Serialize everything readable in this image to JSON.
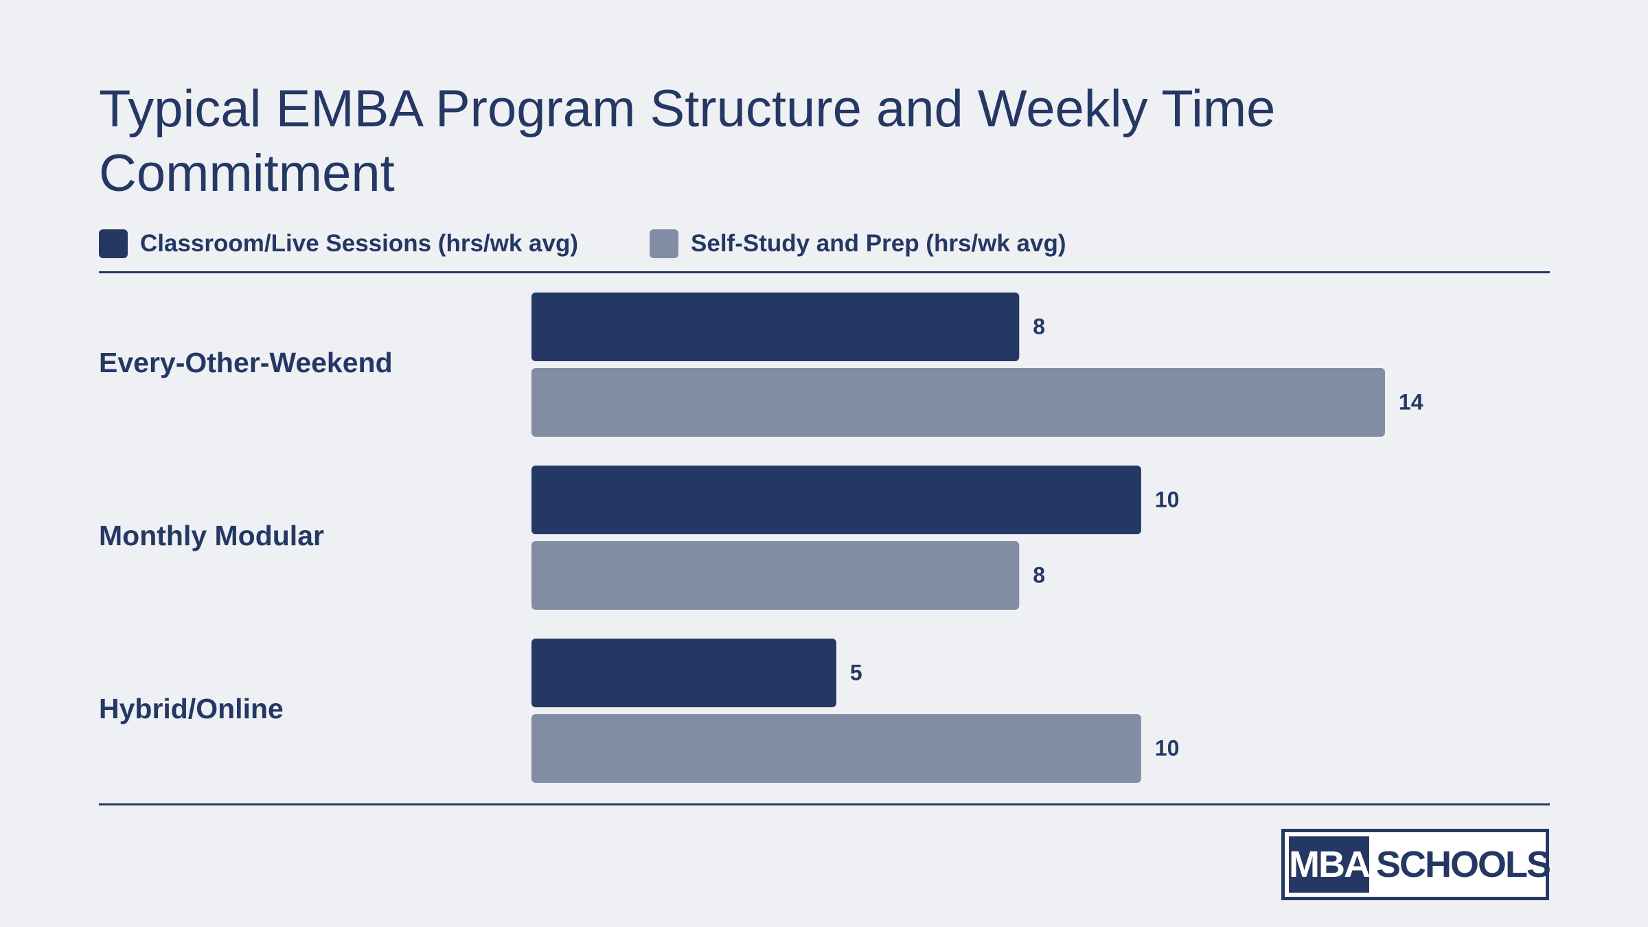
{
  "chart_data": {
    "type": "bar",
    "orientation": "horizontal",
    "title": "Typical EMBA Program Structure and Weekly Time Commitment",
    "categories": [
      "Every-Other-Weekend",
      "Monthly Modular",
      "Hybrid/Online"
    ],
    "series": [
      {
        "name": "Classroom/Live Sessions (hrs/wk avg)",
        "color": "#243863",
        "values": [
          8,
          10,
          5
        ]
      },
      {
        "name": "Self-Study and Prep (hrs/wk avg)",
        "color": "#828ca3",
        "values": [
          14,
          8,
          10
        ]
      }
    ],
    "xlim": [
      0,
      14
    ],
    "grid": false,
    "legend_position": "top-left",
    "data_labels": true
  },
  "logo": {
    "left_text": "MBA",
    "right_text": "SCHOOLS"
  }
}
